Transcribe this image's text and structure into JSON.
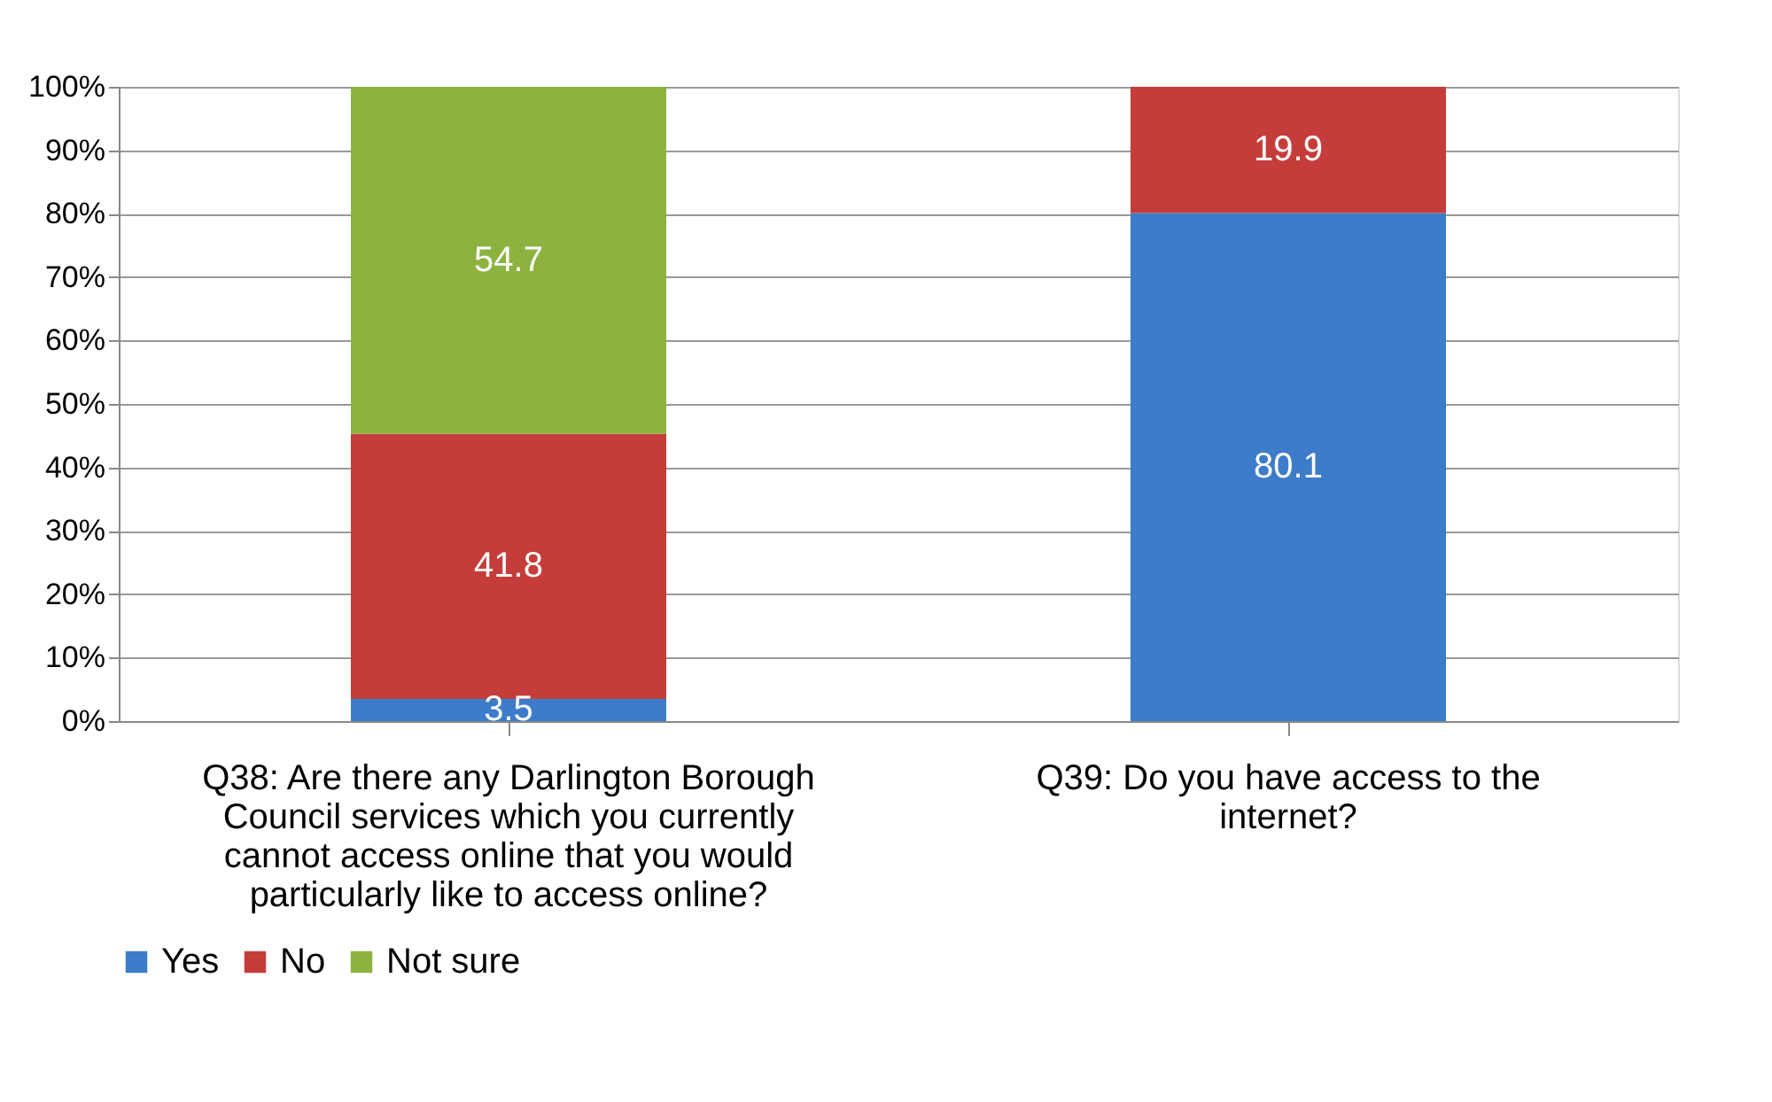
{
  "chart_data": {
    "type": "bar",
    "stacked": true,
    "categories": [
      "Q38: Are there any Darlington Borough Council services which you currently cannot access online that you would particularly like to access online?",
      "Q39: Do you have access to the internet?"
    ],
    "series": [
      {
        "name": "Yes",
        "color": "#3d7cc9",
        "values": [
          3.5,
          80.1
        ]
      },
      {
        "name": "No",
        "color": "#c43d3a",
        "values": [
          41.8,
          19.9
        ]
      },
      {
        "name": "Not sure",
        "color": "#8cb240",
        "values": [
          54.7,
          null
        ]
      }
    ],
    "ylim": [
      0,
      100
    ],
    "yticks": [
      {
        "value": 0,
        "label": "0%"
      },
      {
        "value": 10,
        "label": "10%"
      },
      {
        "value": 20,
        "label": "20%"
      },
      {
        "value": 30,
        "label": "30%"
      },
      {
        "value": 40,
        "label": "40%"
      },
      {
        "value": 50,
        "label": "50%"
      },
      {
        "value": 60,
        "label": "60%"
      },
      {
        "value": 70,
        "label": "70%"
      },
      {
        "value": 80,
        "label": "80%"
      },
      {
        "value": 90,
        "label": "90%"
      },
      {
        "value": 100,
        "label": "100%"
      }
    ],
    "grid": "y",
    "legend": "bottom",
    "data_labels": true
  }
}
